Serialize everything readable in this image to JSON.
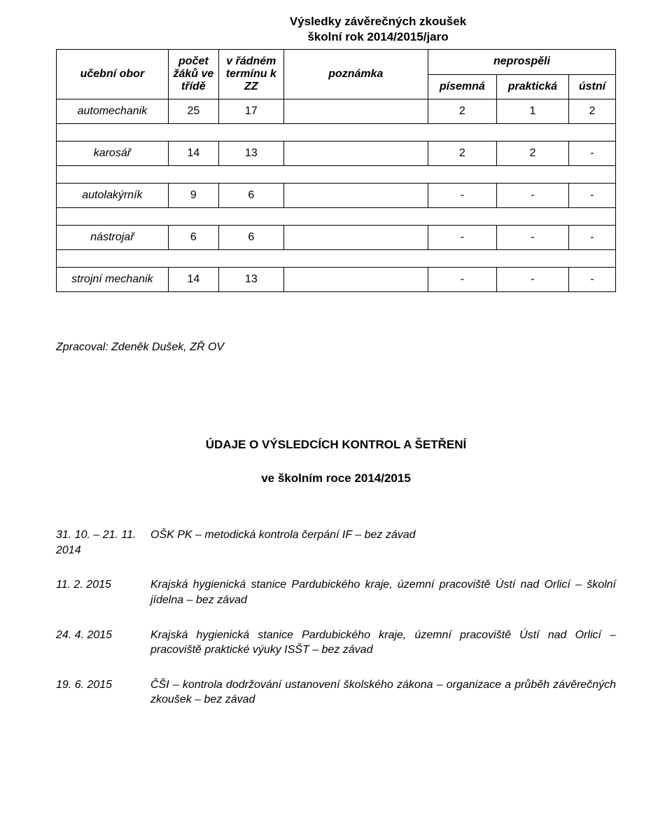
{
  "title": {
    "line1": "Výsledky závěrečných zkoušek",
    "line2": "školní rok 2014/2015/jaro"
  },
  "table": {
    "headers": {
      "obor": "učební obor",
      "pocet": "počet žáků ve třídě",
      "termin": "v řádném termínu k ZZ",
      "poznamka": "poznámka",
      "neprospeli": "neprospěli",
      "pisemna": "písemná",
      "prakticka": "praktická",
      "ustni": "ústní"
    },
    "rows": [
      {
        "obor": "automechanik",
        "pocet": "25",
        "termin": "17",
        "poznamka": "",
        "pis": "2",
        "prak": "1",
        "ust": "2"
      },
      {
        "obor": "karosář",
        "pocet": "14",
        "termin": "13",
        "poznamka": "",
        "pis": "2",
        "prak": "2",
        "ust": "-"
      },
      {
        "obor": "autolakýrník",
        "pocet": "9",
        "termin": "6",
        "poznamka": "",
        "pis": "-",
        "prak": "-",
        "ust": "-"
      },
      {
        "obor": "nástrojař",
        "pocet": "6",
        "termin": "6",
        "poznamka": "",
        "pis": "-",
        "prak": "-",
        "ust": "-"
      },
      {
        "obor": "strojní mechanik",
        "pocet": "14",
        "termin": "13",
        "poznamka": "",
        "pis": "-",
        "prak": "-",
        "ust": "-"
      }
    ]
  },
  "zpracoval": "Zpracoval: Zdeněk Dušek, ZŘ OV",
  "section": {
    "heading": "ÚDAJE O VÝSLEDCÍCH KONTROL A ŠETŘENÍ",
    "sub": "ve školním roce 2014/2015"
  },
  "entries": [
    {
      "date": "31. 10. – 21. 11. 2014",
      "text": "OŠK PK – metodická kontrola čerpání IF – bez závad"
    },
    {
      "date": "11. 2. 2015",
      "text": "Krajská hygienická stanice Pardubického kraje, územní pracoviště Ústí nad Orlicí – školní jídelna – bez závad"
    },
    {
      "date": "24. 4. 2015",
      "text": "Krajská hygienická stanice Pardubického kraje, územní pracoviště Ústí nad Orlicí – pracoviště praktické výuky ISŠT – bez závad"
    },
    {
      "date": "19. 6. 2015",
      "text": "ČŠI – kontrola dodržování ustanovení školského zákona – organizace a průběh závěrečných zkoušek – bez závad"
    }
  ]
}
